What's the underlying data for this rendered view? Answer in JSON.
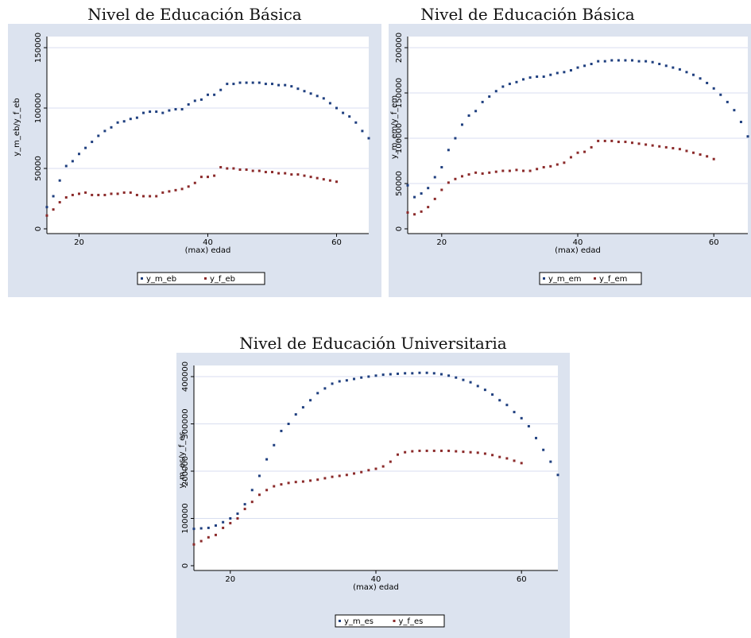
{
  "colors": {
    "panel_bg": "#dce3ef",
    "plot_bg": "#ffffff",
    "grid": "#d8def0",
    "series_m": "#1f3f7f",
    "series_f": "#8b2a2a",
    "axis": "#000000"
  },
  "chart_data": [
    {
      "type": "scatter",
      "title": "Nivel de Educación Básica",
      "xlabel": "(max) edad",
      "ylabel": "y_m_eb/y_f_eb",
      "xlim": [
        15,
        65
      ],
      "ylim": [
        0,
        150000
      ],
      "xticks": [
        20,
        40,
        60
      ],
      "yticks": [
        0,
        50000,
        100000,
        150000
      ],
      "grid": true,
      "legend_position": "bottom",
      "series": [
        {
          "name": "y_m_eb",
          "x": [
            15,
            16,
            17,
            18,
            19,
            20,
            21,
            22,
            23,
            24,
            25,
            26,
            27,
            28,
            29,
            30,
            31,
            32,
            33,
            34,
            35,
            36,
            37,
            38,
            39,
            40,
            41,
            42,
            43,
            44,
            45,
            46,
            47,
            48,
            49,
            50,
            51,
            52,
            53,
            54,
            55,
            56,
            57,
            58,
            59,
            60,
            61,
            62,
            63,
            64,
            65
          ],
          "y": [
            18000,
            27000,
            40000,
            52000,
            56000,
            62000,
            67000,
            72000,
            77000,
            81000,
            84000,
            88000,
            89000,
            91000,
            92000,
            96000,
            97000,
            97000,
            96000,
            98000,
            99000,
            99000,
            103000,
            106000,
            107000,
            111000,
            111000,
            115000,
            120000,
            120000,
            121000,
            121000,
            121000,
            121000,
            120000,
            120000,
            119000,
            119000,
            118000,
            116000,
            114000,
            112000,
            110000,
            108000,
            104000,
            100000,
            96000,
            93000,
            88000,
            81000,
            75000
          ]
        },
        {
          "name": "y_f_eb",
          "x": [
            15,
            16,
            17,
            18,
            19,
            20,
            21,
            22,
            23,
            24,
            25,
            26,
            27,
            28,
            29,
            30,
            31,
            32,
            33,
            34,
            35,
            36,
            37,
            38,
            39,
            40,
            41,
            42,
            43,
            44,
            45,
            46,
            47,
            48,
            49,
            50,
            51,
            52,
            53,
            54,
            55,
            56,
            57,
            58,
            59,
            60
          ],
          "y": [
            11000,
            16000,
            22000,
            26000,
            28000,
            29000,
            30000,
            28000,
            28000,
            28000,
            29000,
            29000,
            30000,
            30000,
            28000,
            27000,
            27000,
            27000,
            30000,
            31000,
            32000,
            33000,
            35000,
            38000,
            43000,
            43000,
            44000,
            51000,
            50000,
            50000,
            49000,
            49000,
            48000,
            48000,
            47000,
            47000,
            46000,
            46000,
            45000,
            45000,
            44000,
            43000,
            42000,
            41000,
            40000,
            39000
          ]
        }
      ]
    },
    {
      "type": "scatter",
      "title": "Nivel de Educación Básica",
      "xlabel": "(max) edad",
      "ylabel": "y_m_em/y_f_em",
      "xlim": [
        15,
        65
      ],
      "ylim": [
        0,
        200000
      ],
      "xticks": [
        20,
        40,
        60
      ],
      "yticks": [
        0,
        50000,
        100000,
        150000,
        200000
      ],
      "grid": true,
      "legend_position": "bottom",
      "series": [
        {
          "name": "y_m_em",
          "x": [
            15,
            16,
            17,
            18,
            19,
            20,
            21,
            22,
            23,
            24,
            25,
            26,
            27,
            28,
            29,
            30,
            31,
            32,
            33,
            34,
            35,
            36,
            37,
            38,
            39,
            40,
            41,
            42,
            43,
            44,
            45,
            46,
            47,
            48,
            49,
            50,
            51,
            52,
            53,
            54,
            55,
            56,
            57,
            58,
            59,
            60,
            61,
            62,
            63,
            64,
            65
          ],
          "y": [
            48000,
            35000,
            39000,
            45000,
            57000,
            68000,
            87000,
            100000,
            115000,
            125000,
            130000,
            140000,
            146000,
            152000,
            157000,
            160000,
            162000,
            165000,
            167000,
            168000,
            168000,
            170000,
            172000,
            173000,
            175000,
            178000,
            180000,
            182000,
            185000,
            185000,
            186000,
            186000,
            186000,
            186000,
            185000,
            185000,
            184000,
            182000,
            180000,
            178000,
            176000,
            173000,
            170000,
            166000,
            161000,
            155000,
            148000,
            140000,
            131000,
            118000,
            102000
          ]
        },
        {
          "name": "y_f_em",
          "x": [
            15,
            16,
            17,
            18,
            19,
            20,
            21,
            22,
            23,
            24,
            25,
            26,
            27,
            28,
            29,
            30,
            31,
            32,
            33,
            34,
            35,
            36,
            37,
            38,
            39,
            40,
            41,
            42,
            43,
            44,
            45,
            46,
            47,
            48,
            49,
            50,
            51,
            52,
            53,
            54,
            55,
            56,
            57,
            58,
            59,
            60
          ],
          "y": [
            18000,
            16000,
            19000,
            24000,
            33000,
            43000,
            51000,
            55000,
            58000,
            60000,
            62000,
            61000,
            62000,
            63000,
            64000,
            64000,
            65000,
            64000,
            64000,
            66000,
            68000,
            69000,
            71000,
            73000,
            79000,
            84000,
            85000,
            90000,
            97000,
            97000,
            97000,
            96000,
            96000,
            95000,
            94000,
            93000,
            92000,
            91000,
            90000,
            89000,
            88000,
            86000,
            84000,
            82000,
            80000,
            77000
          ]
        }
      ]
    },
    {
      "type": "scatter",
      "title": "Nivel de Educación Universitaria",
      "xlabel": "(max) edad",
      "ylabel": "y_m_es/y_f_es",
      "xlim": [
        15,
        65
      ],
      "ylim": [
        0,
        400000
      ],
      "xticks": [
        20,
        40,
        60
      ],
      "yticks": [
        0,
        100000,
        200000,
        300000,
        400000
      ],
      "grid": true,
      "legend_position": "bottom",
      "series": [
        {
          "name": "y_m_es",
          "x": [
            15,
            16,
            17,
            18,
            19,
            20,
            21,
            22,
            23,
            24,
            25,
            26,
            27,
            28,
            29,
            30,
            31,
            32,
            33,
            34,
            35,
            36,
            37,
            38,
            39,
            40,
            41,
            42,
            43,
            44,
            45,
            46,
            47,
            48,
            49,
            50,
            51,
            52,
            53,
            54,
            55,
            56,
            57,
            58,
            59,
            60,
            61,
            62,
            63,
            64,
            65
          ],
          "y": [
            78000,
            79000,
            80000,
            85000,
            92000,
            100000,
            110000,
            130000,
            160000,
            190000,
            225000,
            255000,
            285000,
            300000,
            320000,
            335000,
            350000,
            365000,
            375000,
            385000,
            390000,
            392000,
            395000,
            398000,
            400000,
            402000,
            404000,
            405000,
            406000,
            407000,
            407000,
            408000,
            408000,
            407000,
            405000,
            402000,
            398000,
            393000,
            388000,
            380000,
            372000,
            362000,
            350000,
            340000,
            325000,
            312000,
            295000,
            270000,
            245000,
            220000,
            192000
          ]
        },
        {
          "name": "y_f_es",
          "x": [
            15,
            16,
            17,
            18,
            19,
            20,
            21,
            22,
            23,
            24,
            25,
            26,
            27,
            28,
            29,
            30,
            31,
            32,
            33,
            34,
            35,
            36,
            37,
            38,
            39,
            40,
            41,
            42,
            43,
            44,
            45,
            46,
            47,
            48,
            49,
            50,
            51,
            52,
            53,
            54,
            55,
            56,
            57,
            58,
            59,
            60
          ],
          "y": [
            45000,
            52000,
            60000,
            65000,
            80000,
            90000,
            100000,
            120000,
            135000,
            150000,
            160000,
            168000,
            172000,
            175000,
            177000,
            178000,
            180000,
            182000,
            185000,
            188000,
            190000,
            192000,
            195000,
            198000,
            202000,
            205000,
            210000,
            220000,
            235000,
            240000,
            242000,
            243000,
            243000,
            243000,
            243000,
            243000,
            242000,
            241000,
            240000,
            239000,
            237000,
            234000,
            230000,
            227000,
            222000,
            217000
          ]
        }
      ]
    }
  ]
}
